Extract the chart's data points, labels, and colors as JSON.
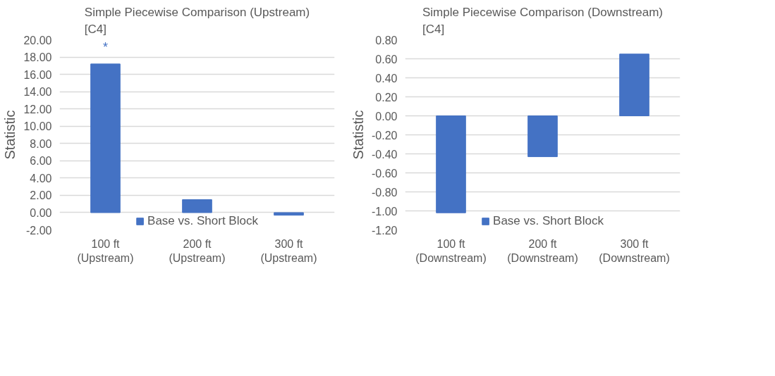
{
  "chart_data": [
    {
      "type": "bar",
      "title": "Simple Piecewise Comparison (Upstream) [C4]",
      "ylabel": "Statistic",
      "categories": [
        "100 ft (Upstream)",
        "200 ft (Upstream)",
        "300 ft (Upstream)"
      ],
      "series": [
        {
          "name": "Base vs. Short Block",
          "color": "#4472c4",
          "values": [
            17.2,
            1.5,
            -0.3
          ]
        }
      ],
      "ylim": [
        -2,
        20
      ],
      "yticks": [
        {
          "value": -2,
          "label": "-2.00"
        },
        {
          "value": 0,
          "label": "0.00"
        },
        {
          "value": 2,
          "label": "2.00"
        },
        {
          "value": 4,
          "label": "4.00"
        },
        {
          "value": 6,
          "label": "6.00"
        },
        {
          "value": 8,
          "label": "8.00"
        },
        {
          "value": 10,
          "label": "10.00"
        },
        {
          "value": 12,
          "label": "12.00"
        },
        {
          "value": 14,
          "label": "14.00"
        },
        {
          "value": 16,
          "label": "16.00"
        },
        {
          "value": 18,
          "label": "18.00"
        },
        {
          "value": 20,
          "label": "20.00"
        }
      ],
      "annotations": [
        "*"
      ],
      "grid": "y",
      "legend": "bottom"
    },
    {
      "type": "bar",
      "title": "Simple Piecewise Comparison (Downstream) [C4]",
      "ylabel": "Statistic",
      "categories": [
        "100 ft (Downstream)",
        "200 ft (Downstream)",
        "300 ft (Downstream)"
      ],
      "series": [
        {
          "name": "Base vs. Short Block",
          "color": "#4472c4",
          "values": [
            -1.02,
            -0.43,
            0.65
          ]
        }
      ],
      "ylim": [
        -1.2,
        0.8
      ],
      "yticks": [
        {
          "value": -1.2,
          "label": "-1.20"
        },
        {
          "value": -1.0,
          "label": "-1.00"
        },
        {
          "value": -0.8,
          "label": "-0.80"
        },
        {
          "value": -0.6,
          "label": "-0.60"
        },
        {
          "value": -0.4,
          "label": "-0.40"
        },
        {
          "value": -0.2,
          "label": "-0.20"
        },
        {
          "value": 0,
          "label": "0.00"
        },
        {
          "value": 0.2,
          "label": "0.20"
        },
        {
          "value": 0.4,
          "label": "0.40"
        },
        {
          "value": 0.6,
          "label": "0.60"
        },
        {
          "value": 0.8,
          "label": "0.80"
        }
      ],
      "grid": "y",
      "legend": "bottom"
    }
  ]
}
